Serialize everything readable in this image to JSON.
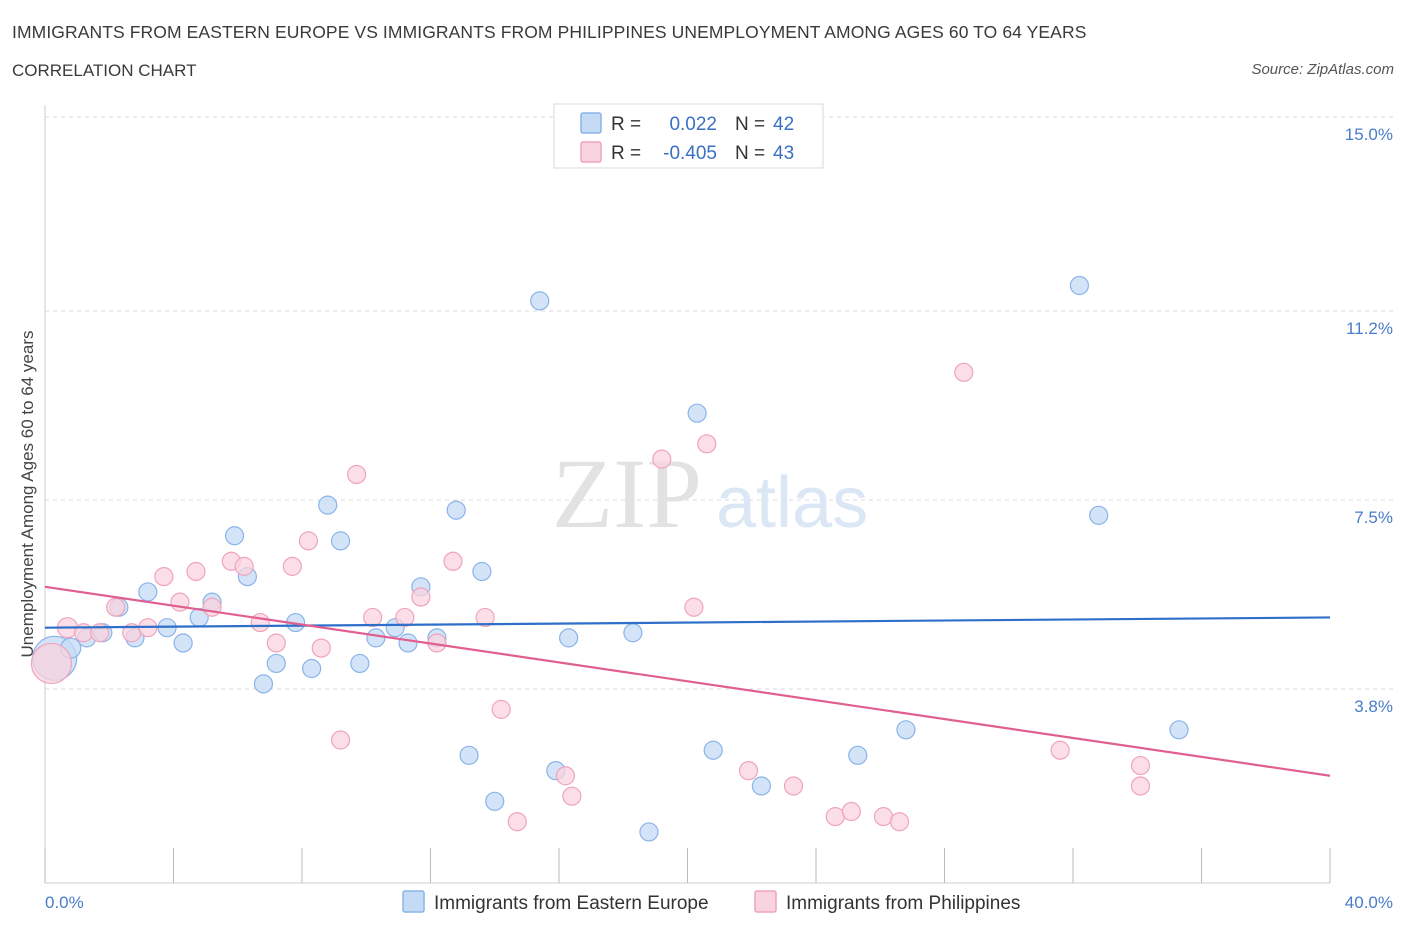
{
  "chart_data": {
    "type": "scatter",
    "title": "IMMIGRANTS FROM EASTERN EUROPE VS IMMIGRANTS FROM PHILIPPINES UNEMPLOYMENT AMONG AGES 60 TO 64 YEARS",
    "subtitle": "CORRELATION CHART",
    "source": "Source: ZipAtlas.com",
    "ylabel": "Unemployment Among Ages 60 to 64 years",
    "xlim": [
      0,
      40
    ],
    "ylim": [
      0.0,
      15.0
    ],
    "x_tick_labels": [
      "0.0%",
      "40.0%"
    ],
    "y_ticks": [
      {
        "value": 3.8,
        "label": "3.8%"
      },
      {
        "value": 7.5,
        "label": "7.5%"
      },
      {
        "value": 11.2,
        "label": "11.2%"
      },
      {
        "value": 15.0,
        "label": "15.0%"
      }
    ],
    "watermark": {
      "part1": "ZIP",
      "part2": "atlas"
    },
    "legend": [
      {
        "r_label": "R =",
        "r_value": "0.022",
        "n_label": "N =",
        "n_value": "42"
      },
      {
        "r_label": "R =",
        "r_value": "-0.405",
        "n_label": "N =",
        "n_value": "43"
      }
    ],
    "series": [
      {
        "name": "Immigrants from Eastern Europe",
        "color": "#8ab4e8",
        "fill": "#c5dbf5",
        "line_color": "#2e6fc9",
        "trend": [
          [
            0,
            5.0
          ],
          [
            40,
            5.2
          ]
        ],
        "points": [
          [
            0.3,
            4.4,
            22
          ],
          [
            0.8,
            4.6,
            10
          ],
          [
            1.3,
            4.8,
            9
          ],
          [
            1.8,
            4.9,
            9
          ],
          [
            2.3,
            5.4,
            9
          ],
          [
            2.8,
            4.8,
            9
          ],
          [
            3.2,
            5.7,
            9
          ],
          [
            3.8,
            5.0,
            9
          ],
          [
            4.3,
            4.7,
            9
          ],
          [
            4.8,
            5.2,
            9
          ],
          [
            5.2,
            5.5,
            9
          ],
          [
            5.9,
            6.8,
            9
          ],
          [
            6.3,
            6.0,
            9
          ],
          [
            6.8,
            3.9,
            9
          ],
          [
            7.2,
            4.3,
            9
          ],
          [
            7.8,
            5.1,
            9
          ],
          [
            8.3,
            4.2,
            9
          ],
          [
            8.8,
            7.4,
            9
          ],
          [
            9.2,
            6.7,
            9
          ],
          [
            9.8,
            4.3,
            9
          ],
          [
            10.3,
            4.8,
            9
          ],
          [
            10.9,
            5.0,
            9
          ],
          [
            11.3,
            4.7,
            9
          ],
          [
            11.7,
            5.8,
            9
          ],
          [
            12.2,
            4.8,
            9
          ],
          [
            12.8,
            7.3,
            9
          ],
          [
            13.2,
            2.5,
            9
          ],
          [
            13.6,
            6.1,
            9
          ],
          [
            14.0,
            1.6,
            9
          ],
          [
            15.4,
            11.4,
            9
          ],
          [
            15.9,
            2.2,
            9
          ],
          [
            16.3,
            4.8,
            9
          ],
          [
            18.3,
            4.9,
            9
          ],
          [
            18.8,
            1.0,
            9
          ],
          [
            20.3,
            9.2,
            9
          ],
          [
            20.8,
            2.6,
            9
          ],
          [
            22.3,
            1.9,
            9
          ],
          [
            25.3,
            2.5,
            9
          ],
          [
            26.8,
            3.0,
            9
          ],
          [
            32.2,
            11.7,
            9
          ],
          [
            32.8,
            7.2,
            9
          ],
          [
            35.3,
            3.0,
            9
          ]
        ]
      },
      {
        "name": "Immigrants from Philippines",
        "color": "#f0a3bd",
        "fill": "#f9d3df",
        "line_color": "#e05f90",
        "trend": [
          [
            0,
            5.8
          ],
          [
            40,
            2.1
          ]
        ],
        "points": [
          [
            0.2,
            4.3,
            20
          ],
          [
            0.7,
            5.0,
            10
          ],
          [
            1.2,
            4.9,
            9
          ],
          [
            1.7,
            4.9,
            9
          ],
          [
            2.2,
            5.4,
            9
          ],
          [
            2.7,
            4.9,
            9
          ],
          [
            3.2,
            5.0,
            9
          ],
          [
            3.7,
            6.0,
            9
          ],
          [
            4.2,
            5.5,
            9
          ],
          [
            4.7,
            6.1,
            9
          ],
          [
            5.2,
            5.4,
            9
          ],
          [
            5.8,
            6.3,
            9
          ],
          [
            6.2,
            6.2,
            9
          ],
          [
            6.7,
            5.1,
            9
          ],
          [
            7.2,
            4.7,
            9
          ],
          [
            7.7,
            6.2,
            9
          ],
          [
            8.2,
            6.7,
            9
          ],
          [
            8.6,
            4.6,
            9
          ],
          [
            9.2,
            2.8,
            9
          ],
          [
            9.7,
            8.0,
            9
          ],
          [
            10.2,
            5.2,
            9
          ],
          [
            11.2,
            5.2,
            9
          ],
          [
            11.7,
            5.6,
            9
          ],
          [
            12.2,
            4.7,
            9
          ],
          [
            12.7,
            6.3,
            9
          ],
          [
            13.7,
            5.2,
            9
          ],
          [
            14.2,
            3.4,
            9
          ],
          [
            14.7,
            1.2,
            9
          ],
          [
            16.2,
            2.1,
            9
          ],
          [
            16.4,
            1.7,
            9
          ],
          [
            19.2,
            8.3,
            9
          ],
          [
            20.2,
            5.4,
            9
          ],
          [
            20.6,
            8.6,
            9
          ],
          [
            21.9,
            2.2,
            9
          ],
          [
            23.3,
            1.9,
            9
          ],
          [
            24.6,
            1.3,
            9
          ],
          [
            25.1,
            1.4,
            9
          ],
          [
            26.1,
            1.3,
            9
          ],
          [
            26.6,
            1.2,
            9
          ],
          [
            28.6,
            10.0,
            9
          ],
          [
            31.6,
            2.6,
            9
          ],
          [
            34.1,
            2.3,
            9
          ],
          [
            34.1,
            1.9,
            9
          ]
        ]
      }
    ]
  }
}
